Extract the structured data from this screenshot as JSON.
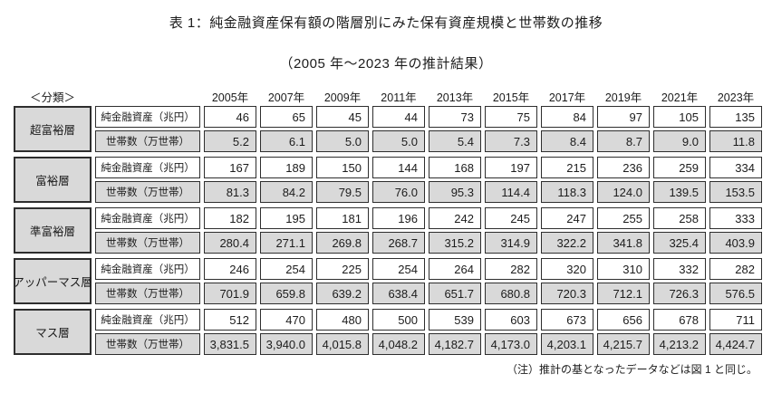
{
  "title": "表 1：純金融資産保有額の階層別にみた保有資産規模と世帯数の推移",
  "subtitle": "（2005 年～2023 年の推計結果）",
  "note": "（注）推計の基となったデータなどは図 1 と同じ。",
  "colors": {
    "cell_gray": "#d9d9d9",
    "cell_white": "#ffffff",
    "border": "#2e2e2e",
    "text": "#1c1c1c"
  },
  "table": {
    "classification_label": "＜分類＞",
    "years": [
      "2005年",
      "2007年",
      "2009年",
      "2011年",
      "2013年",
      "2015年",
      "2017年",
      "2019年",
      "2021年",
      "2023年"
    ],
    "row_labels": {
      "assets": "純金融資産（兆円）",
      "households": "世帯数（万世帯）"
    },
    "blocks": [
      {
        "category": "超富裕層",
        "assets": [
          "46",
          "65",
          "45",
          "44",
          "73",
          "75",
          "84",
          "97",
          "105",
          "135"
        ],
        "households": [
          "5.2",
          "6.1",
          "5.0",
          "5.0",
          "5.4",
          "7.3",
          "8.4",
          "8.7",
          "9.0",
          "11.8"
        ]
      },
      {
        "category": "富裕層",
        "assets": [
          "167",
          "189",
          "150",
          "144",
          "168",
          "197",
          "215",
          "236",
          "259",
          "334"
        ],
        "households": [
          "81.3",
          "84.2",
          "79.5",
          "76.0",
          "95.3",
          "114.4",
          "118.3",
          "124.0",
          "139.5",
          "153.5"
        ]
      },
      {
        "category": "準富裕層",
        "assets": [
          "182",
          "195",
          "181",
          "196",
          "242",
          "245",
          "247",
          "255",
          "258",
          "333"
        ],
        "households": [
          "280.4",
          "271.1",
          "269.8",
          "268.7",
          "315.2",
          "314.9",
          "322.2",
          "341.8",
          "325.4",
          "403.9"
        ]
      },
      {
        "category": "アッパーマス層",
        "assets": [
          "246",
          "254",
          "225",
          "254",
          "264",
          "282",
          "320",
          "310",
          "332",
          "282"
        ],
        "households": [
          "701.9",
          "659.8",
          "639.2",
          "638.4",
          "651.7",
          "680.8",
          "720.3",
          "712.1",
          "726.3",
          "576.5"
        ]
      },
      {
        "category": "マス層",
        "assets": [
          "512",
          "470",
          "480",
          "500",
          "539",
          "603",
          "673",
          "656",
          "678",
          "711"
        ],
        "households": [
          "3,831.5",
          "3,940.0",
          "4,015.8",
          "4,048.2",
          "4,182.7",
          "4,173.0",
          "4,203.1",
          "4,215.7",
          "4,213.2",
          "4,424.7"
        ]
      }
    ]
  }
}
